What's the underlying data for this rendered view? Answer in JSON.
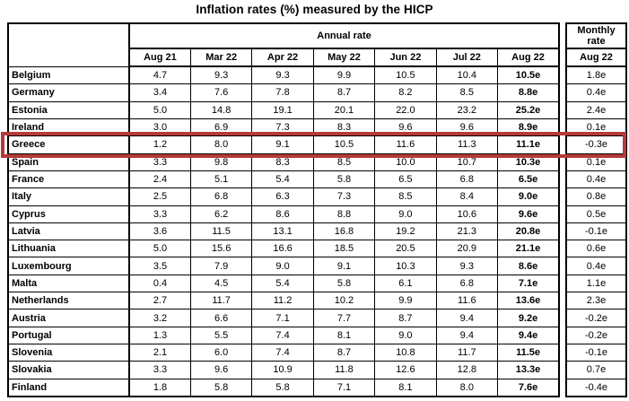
{
  "title": "Inflation rates (%) measured by the HICP",
  "table": {
    "annual_header": "Annual rate",
    "monthly_header": "Monthly rate",
    "columns": [
      "Aug 21",
      "Mar 22",
      "Apr 22",
      "May 22",
      "Jun 22",
      "Jul 22",
      "Aug 22"
    ],
    "monthly_column": "Aug 22",
    "highlighted_country": "Greece",
    "highlight_color": "#b63a39",
    "rows": [
      {
        "country": "Belgium",
        "annual": [
          "4.7",
          "9.3",
          "9.3",
          "9.9",
          "10.5",
          "10.4",
          "10.5e"
        ],
        "monthly": "1.8e"
      },
      {
        "country": "Germany",
        "annual": [
          "3.4",
          "7.6",
          "7.8",
          "8.7",
          "8.2",
          "8.5",
          "8.8e"
        ],
        "monthly": "0.4e"
      },
      {
        "country": "Estonia",
        "annual": [
          "5.0",
          "14.8",
          "19.1",
          "20.1",
          "22.0",
          "23.2",
          "25.2e"
        ],
        "monthly": "2.4e"
      },
      {
        "country": "Ireland",
        "annual": [
          "3.0",
          "6.9",
          "7.3",
          "8.3",
          "9.6",
          "9.6",
          "8.9e"
        ],
        "monthly": "0.1e"
      },
      {
        "country": "Greece",
        "annual": [
          "1.2",
          "8.0",
          "9.1",
          "10.5",
          "11.6",
          "11.3",
          "11.1e"
        ],
        "monthly": "-0.3e"
      },
      {
        "country": "Spain",
        "annual": [
          "3.3",
          "9.8",
          "8.3",
          "8.5",
          "10.0",
          "10.7",
          "10.3e"
        ],
        "monthly": "0.1e"
      },
      {
        "country": "France",
        "annual": [
          "2.4",
          "5.1",
          "5.4",
          "5.8",
          "6.5",
          "6.8",
          "6.5e"
        ],
        "monthly": "0.4e"
      },
      {
        "country": "Italy",
        "annual": [
          "2.5",
          "6.8",
          "6.3",
          "7.3",
          "8.5",
          "8.4",
          "9.0e"
        ],
        "monthly": "0.8e"
      },
      {
        "country": "Cyprus",
        "annual": [
          "3.3",
          "6.2",
          "8.6",
          "8.8",
          "9.0",
          "10.6",
          "9.6e"
        ],
        "monthly": "0.5e"
      },
      {
        "country": "Latvia",
        "annual": [
          "3.6",
          "11.5",
          "13.1",
          "16.8",
          "19.2",
          "21.3",
          "20.8e"
        ],
        "monthly": "-0.1e"
      },
      {
        "country": "Lithuania",
        "annual": [
          "5.0",
          "15.6",
          "16.6",
          "18.5",
          "20.5",
          "20.9",
          "21.1e"
        ],
        "monthly": "0.6e"
      },
      {
        "country": "Luxembourg",
        "annual": [
          "3.5",
          "7.9",
          "9.0",
          "9.1",
          "10.3",
          "9.3",
          "8.6e"
        ],
        "monthly": "0.4e"
      },
      {
        "country": "Malta",
        "annual": [
          "0.4",
          "4.5",
          "5.4",
          "5.8",
          "6.1",
          "6.8",
          "7.1e"
        ],
        "monthly": "1.1e"
      },
      {
        "country": "Netherlands",
        "annual": [
          "2.7",
          "11.7",
          "11.2",
          "10.2",
          "9.9",
          "11.6",
          "13.6e"
        ],
        "monthly": "2.3e"
      },
      {
        "country": "Austria",
        "annual": [
          "3.2",
          "6.6",
          "7.1",
          "7.7",
          "8.7",
          "9.4",
          "9.2e"
        ],
        "monthly": "-0.2e"
      },
      {
        "country": "Portugal",
        "annual": [
          "1.3",
          "5.5",
          "7.4",
          "8.1",
          "9.0",
          "9.4",
          "9.4e"
        ],
        "monthly": "-0.2e"
      },
      {
        "country": "Slovenia",
        "annual": [
          "2.1",
          "6.0",
          "7.4",
          "8.7",
          "10.8",
          "11.7",
          "11.5e"
        ],
        "monthly": "-0.1e"
      },
      {
        "country": "Slovakia",
        "annual": [
          "3.3",
          "9.6",
          "10.9",
          "11.8",
          "12.6",
          "12.8",
          "13.3e"
        ],
        "monthly": "0.7e"
      },
      {
        "country": "Finland",
        "annual": [
          "1.8",
          "5.8",
          "5.8",
          "7.1",
          "8.1",
          "8.0",
          "7.6e"
        ],
        "monthly": "-0.4e"
      }
    ]
  }
}
